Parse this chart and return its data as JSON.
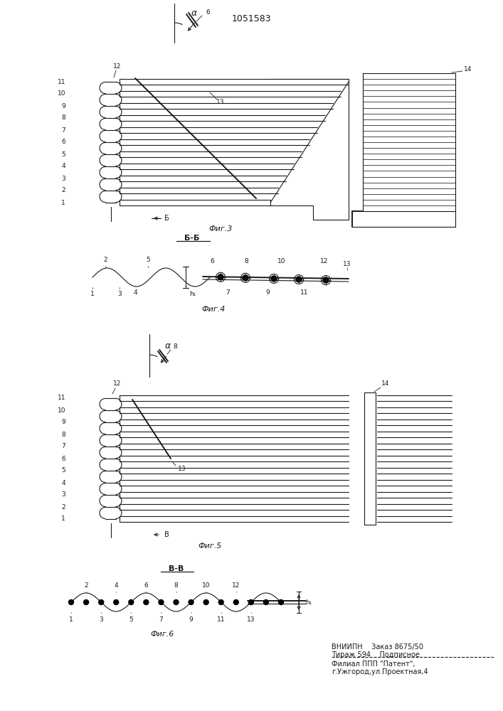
{
  "patent_number": "1051583",
  "fig3_label": "Фиг.3",
  "fig4_label": "Фиг.4",
  "fig5_label": "Фиг.5",
  "fig6_label": "Фиг.6",
  "fig4_section": "Б-Б",
  "fig6_section": "В-В",
  "bg_color": "#ffffff",
  "lc": "#1a1a1a",
  "vniipn_line1": "ВНИИПН    Заказ 8675/50",
  "vniipn_line2": "Тираж 594    Подписное",
  "vniipn_line3": "Филиал ППП \"Патент\",",
  "vniipn_line4": "г.Ужгород,ул.Проектная,4"
}
